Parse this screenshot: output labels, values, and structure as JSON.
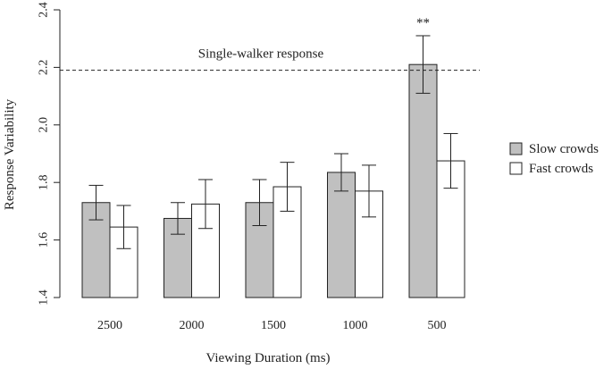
{
  "chart_data": {
    "type": "bar",
    "xlabel": "Viewing Duration (ms)",
    "ylabel": "Response Variability",
    "ylim": [
      1.4,
      2.4
    ],
    "yticks": [
      1.4,
      1.6,
      1.8,
      2.0,
      2.2,
      2.4
    ],
    "ytick_labels": [
      "1.4",
      "1.6",
      "1.8",
      "2.0",
      "2.2",
      "2.4"
    ],
    "categories": [
      "2500",
      "2000",
      "1500",
      "1000",
      "500"
    ],
    "series": [
      {
        "name": "Slow crowds",
        "color": "#c0c0c0",
        "values": [
          1.73,
          1.675,
          1.73,
          1.835,
          2.21
        ],
        "error": [
          0.06,
          0.055,
          0.08,
          0.065,
          0.1
        ]
      },
      {
        "name": "Fast crowds",
        "color": "#ffffff",
        "values": [
          1.645,
          1.725,
          1.785,
          1.77,
          1.875
        ],
        "error": [
          0.075,
          0.085,
          0.085,
          0.09,
          0.095
        ]
      }
    ],
    "reference_line": {
      "value": 2.19,
      "label": "Single-walker response",
      "style": "dashed"
    },
    "significance": {
      "category": "500",
      "label": "**"
    },
    "legend_position": "right",
    "grid": false
  }
}
